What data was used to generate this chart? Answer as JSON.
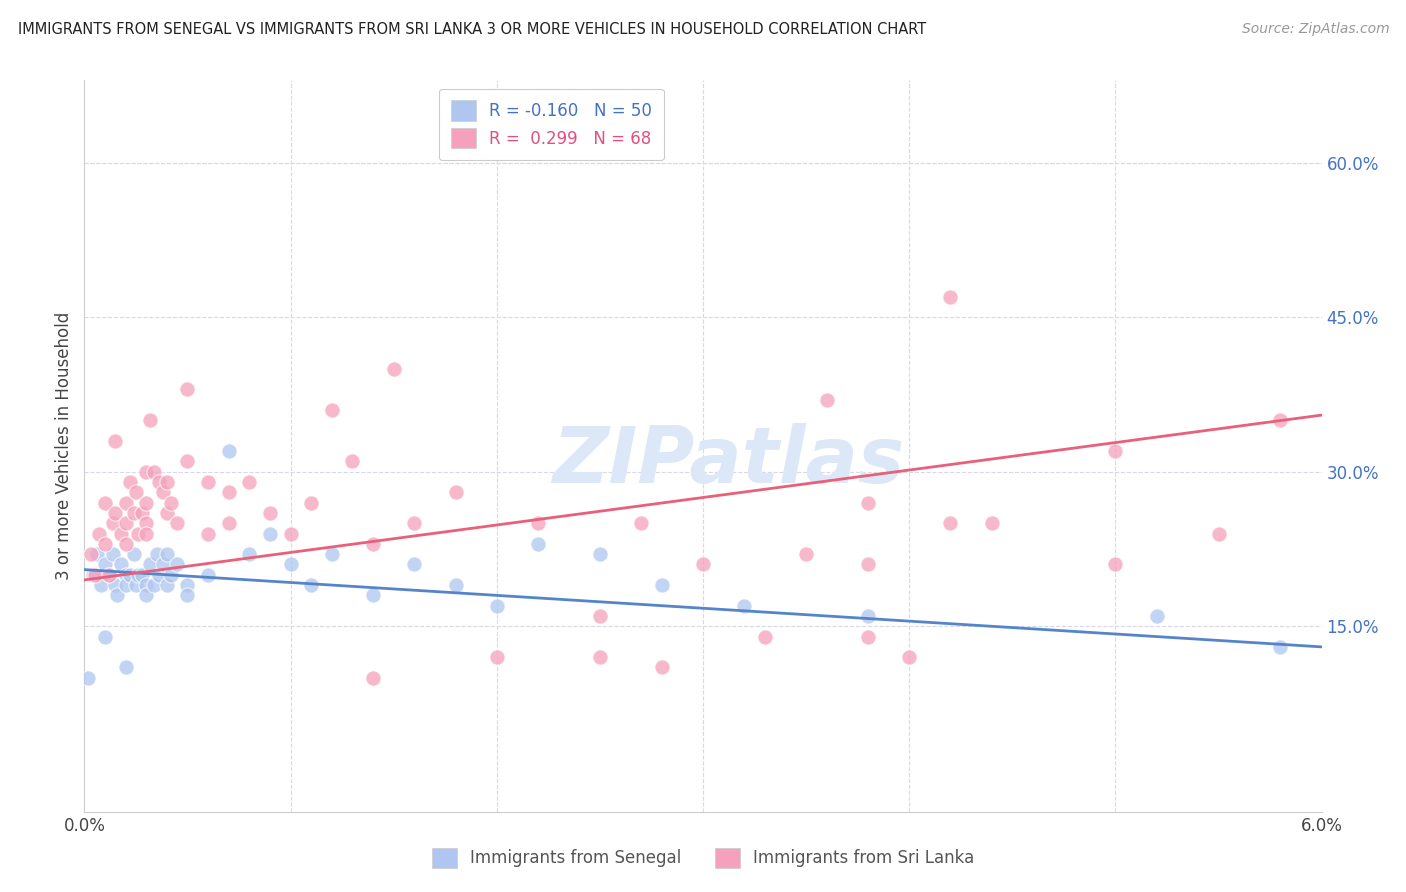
{
  "title": "IMMIGRANTS FROM SENEGAL VS IMMIGRANTS FROM SRI LANKA 3 OR MORE VEHICLES IN HOUSEHOLD CORRELATION CHART",
  "source": "Source: ZipAtlas.com",
  "ylabel": "3 or more Vehicles in Household",
  "right_yticks": [
    0.15,
    0.3,
    0.45,
    0.6
  ],
  "right_yticklabels": [
    "15.0%",
    "30.0%",
    "45.0%",
    "60.0%"
  ],
  "xlim": [
    0.0,
    0.06
  ],
  "ylim": [
    -0.03,
    0.68
  ],
  "xticks": [
    0.0,
    0.01,
    0.02,
    0.03,
    0.04,
    0.05,
    0.06
  ],
  "xticklabels": [
    "0.0%",
    "",
    "",
    "",
    "",
    "",
    "6.0%"
  ],
  "senegal_color": "#aec6f0",
  "srilanka_color": "#f5a0bc",
  "senegal_line_color": "#5585c8",
  "srilanka_line_color": "#e8607a",
  "watermark": "ZIPatlas",
  "watermark_color": "#dce8f8",
  "background_color": "#ffffff",
  "grid_color": "#d8d8e8",
  "senegal_x": [
    0.0002,
    0.0004,
    0.0006,
    0.0008,
    0.001,
    0.001,
    0.0012,
    0.0014,
    0.0015,
    0.0016,
    0.0018,
    0.002,
    0.002,
    0.002,
    0.0022,
    0.0024,
    0.0025,
    0.0026,
    0.0028,
    0.003,
    0.003,
    0.0032,
    0.0034,
    0.0035,
    0.0036,
    0.0038,
    0.004,
    0.004,
    0.0042,
    0.0045,
    0.005,
    0.005,
    0.006,
    0.007,
    0.008,
    0.009,
    0.01,
    0.011,
    0.012,
    0.014,
    0.016,
    0.018,
    0.02,
    0.022,
    0.025,
    0.028,
    0.032,
    0.038,
    0.052,
    0.058
  ],
  "senegal_y": [
    0.1,
    0.2,
    0.22,
    0.19,
    0.21,
    0.14,
    0.2,
    0.22,
    0.19,
    0.18,
    0.21,
    0.2,
    0.19,
    0.11,
    0.2,
    0.22,
    0.19,
    0.2,
    0.2,
    0.19,
    0.18,
    0.21,
    0.19,
    0.22,
    0.2,
    0.21,
    0.22,
    0.19,
    0.2,
    0.21,
    0.19,
    0.18,
    0.2,
    0.32,
    0.22,
    0.24,
    0.21,
    0.19,
    0.22,
    0.18,
    0.21,
    0.19,
    0.17,
    0.23,
    0.22,
    0.19,
    0.17,
    0.16,
    0.16,
    0.13
  ],
  "srilanka_x": [
    0.0003,
    0.0005,
    0.0007,
    0.001,
    0.001,
    0.0012,
    0.0014,
    0.0015,
    0.0015,
    0.0018,
    0.002,
    0.002,
    0.002,
    0.0022,
    0.0024,
    0.0025,
    0.0026,
    0.0028,
    0.003,
    0.003,
    0.003,
    0.003,
    0.0032,
    0.0034,
    0.0036,
    0.0038,
    0.004,
    0.004,
    0.0042,
    0.0045,
    0.005,
    0.005,
    0.006,
    0.006,
    0.007,
    0.007,
    0.008,
    0.009,
    0.01,
    0.011,
    0.012,
    0.013,
    0.014,
    0.015,
    0.016,
    0.018,
    0.02,
    0.022,
    0.025,
    0.027,
    0.03,
    0.033,
    0.036,
    0.038,
    0.04,
    0.042,
    0.044,
    0.05,
    0.055,
    0.058,
    0.025,
    0.028,
    0.014,
    0.035,
    0.038,
    0.042,
    0.05,
    0.038
  ],
  "srilanka_y": [
    0.22,
    0.2,
    0.24,
    0.27,
    0.23,
    0.2,
    0.25,
    0.33,
    0.26,
    0.24,
    0.27,
    0.25,
    0.23,
    0.29,
    0.26,
    0.28,
    0.24,
    0.26,
    0.27,
    0.25,
    0.3,
    0.24,
    0.35,
    0.3,
    0.29,
    0.28,
    0.29,
    0.26,
    0.27,
    0.25,
    0.38,
    0.31,
    0.24,
    0.29,
    0.25,
    0.28,
    0.29,
    0.26,
    0.24,
    0.27,
    0.36,
    0.31,
    0.23,
    0.4,
    0.25,
    0.28,
    0.12,
    0.25,
    0.12,
    0.25,
    0.21,
    0.14,
    0.37,
    0.21,
    0.12,
    0.47,
    0.25,
    0.32,
    0.24,
    0.35,
    0.16,
    0.11,
    0.1,
    0.22,
    0.27,
    0.25,
    0.21,
    0.14
  ]
}
